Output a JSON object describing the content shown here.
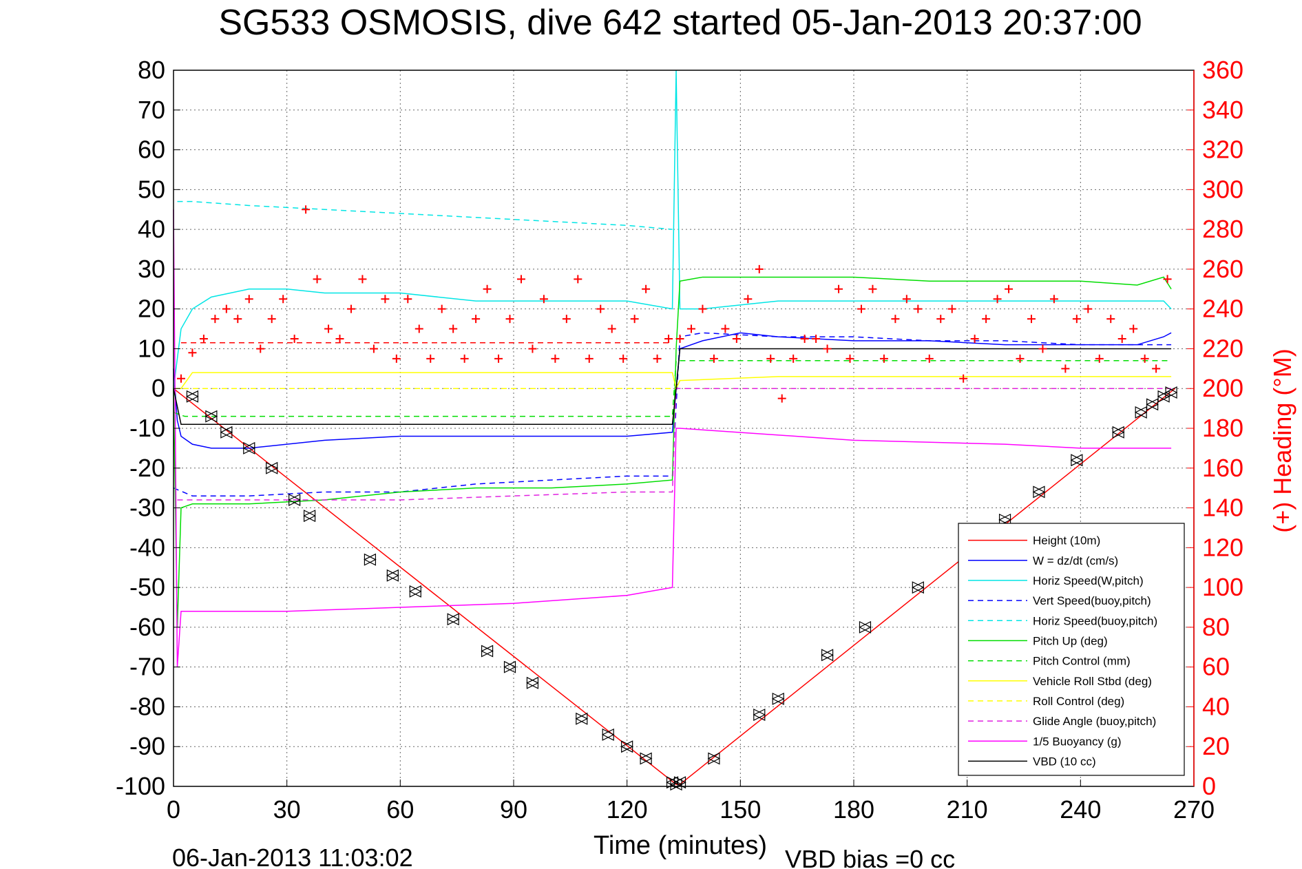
{
  "chart_data": {
    "type": "line",
    "title": "SG533 OSMOSIS, dive 642 started 05-Jan-2013 20:37:00",
    "xlabel": "Time (minutes)",
    "ylabel": "",
    "y2label": "(+) Heading (°M)",
    "footer_left": "06-Jan-2013 11:03:02",
    "footer_right": "VBD bias =0 cc",
    "xlim": [
      0,
      270
    ],
    "ylim": [
      -100,
      80
    ],
    "y2lim": [
      0,
      360
    ],
    "xticks": [
      "0",
      "30",
      "60",
      "90",
      "120",
      "150",
      "180",
      "210",
      "240",
      "270"
    ],
    "yticks": [
      "80",
      "70",
      "60",
      "50",
      "40",
      "30",
      "20",
      "10",
      "0",
      "-10",
      "-20",
      "-30",
      "-40",
      "-50",
      "-60",
      "-70",
      "-80",
      "-90",
      "-100"
    ],
    "y2ticks": [
      "360",
      "340",
      "320",
      "300",
      "280",
      "260",
      "240",
      "220",
      "200",
      "180",
      "160",
      "140",
      "120",
      "100",
      "80",
      "60",
      "40",
      "20",
      "0"
    ],
    "grid": true,
    "legend_position": "bottom-right",
    "series": [
      {
        "name": "Height (10m)",
        "color": "#ff0000",
        "style": "solid",
        "x": [
          0,
          133,
          134,
          265
        ],
        "y": [
          0,
          -99.5,
          -99.5,
          0
        ]
      },
      {
        "name": "W = dz/dt (cm/s)",
        "color": "#0000ff",
        "style": "solid",
        "x": [
          0,
          1,
          2,
          5,
          10,
          20,
          40,
          60,
          80,
          100,
          120,
          132,
          133,
          134,
          140,
          150,
          160,
          180,
          200,
          220,
          240,
          255,
          262,
          264
        ],
        "y": [
          5,
          -8,
          -12,
          -14,
          -15,
          -15,
          -13,
          -12,
          -12,
          -12,
          -12,
          -11,
          0,
          10,
          12,
          14,
          13,
          12,
          12,
          11,
          11,
          11,
          13,
          14
        ]
      },
      {
        "name": "Horiz Speed(W,pitch)",
        "color": "#00e5e5",
        "style": "solid",
        "x": [
          0,
          2,
          5,
          10,
          20,
          30,
          40,
          60,
          80,
          100,
          120,
          132,
          133,
          134,
          140,
          160,
          180,
          200,
          220,
          240,
          255,
          262,
          264
        ],
        "y": [
          0,
          15,
          20,
          23,
          25,
          25,
          24,
          24,
          22,
          22,
          22,
          20,
          80,
          20,
          20,
          22,
          22,
          22,
          22,
          22,
          22,
          22,
          20
        ]
      },
      {
        "name": "Vert Speed(buoy,pitch)",
        "color": "#0000ff",
        "style": "dashed",
        "x": [
          0,
          5,
          20,
          40,
          60,
          80,
          100,
          120,
          132,
          134,
          140,
          160,
          180,
          200,
          220,
          240,
          264
        ],
        "y": [
          -25,
          -27,
          -27,
          -26,
          -26,
          -24,
          -23,
          -22,
          -22,
          13,
          14,
          13,
          13,
          12,
          12,
          11,
          11
        ]
      },
      {
        "name": "Horiz Speed(buoy,pitch)",
        "color": "#00e5e5",
        "style": "dashed",
        "x": [
          1,
          5,
          20,
          40,
          60,
          80,
          100,
          120,
          132
        ],
        "y": [
          47,
          47,
          46,
          45,
          44,
          43,
          42,
          41,
          40
        ]
      },
      {
        "name": "Pitch Up (deg)",
        "color": "#00dd00",
        "style": "solid",
        "x": [
          0,
          1,
          2,
          5,
          20,
          40,
          60,
          80,
          100,
          120,
          132,
          133,
          134,
          140,
          160,
          180,
          200,
          220,
          240,
          255,
          262,
          264
        ],
        "y": [
          0,
          -60,
          -30,
          -29,
          -29,
          -28,
          -26,
          -25,
          -25,
          -24,
          -23,
          10,
          27,
          28,
          28,
          28,
          27,
          27,
          27,
          26,
          28,
          25
        ]
      },
      {
        "name": "Pitch Control (mm)",
        "color": "#00dd00",
        "style": "dashed",
        "x": [
          0,
          3,
          132,
          133,
          264
        ],
        "y": [
          -6,
          -7,
          -7,
          7,
          7
        ]
      },
      {
        "name": "Vehicle Roll Stbd (deg)",
        "color": "#ffff00",
        "style": "solid",
        "x": [
          0,
          2,
          5,
          30,
          60,
          90,
          120,
          132,
          133,
          134,
          160,
          200,
          240,
          264
        ],
        "y": [
          0,
          0,
          4,
          4,
          4,
          4,
          4,
          4,
          0,
          2,
          3,
          3,
          3,
          3
        ]
      },
      {
        "name": "Roll Control (deg)",
        "color": "#ffff00",
        "style": "dashed",
        "x": [
          0,
          264
        ],
        "y": [
          0,
          0
        ]
      },
      {
        "name": "Glide Angle (buoy,pitch)",
        "color": "#e020e0",
        "style": "dashed",
        "x": [
          1,
          5,
          30,
          60,
          90,
          120,
          132,
          133,
          264
        ],
        "y": [
          -28,
          -28,
          -28,
          -28,
          -27,
          -26,
          -26,
          0,
          0
        ]
      },
      {
        "name": "1/5 Buoyancy (g)",
        "color": "#ff00ff",
        "style": "solid",
        "x": [
          0,
          1,
          2,
          3,
          30,
          60,
          90,
          120,
          132,
          133,
          134,
          180,
          220,
          240,
          264
        ],
        "y": [
          45,
          -70,
          -56,
          -56,
          -56,
          -55,
          -54,
          -52,
          -50,
          -10,
          -10,
          -13,
          -14,
          -15,
          -15
        ]
      },
      {
        "name": "VBD (10 cc)",
        "color": "#000000",
        "style": "solid",
        "x": [
          0,
          2,
          132,
          133,
          134,
          264
        ],
        "y": [
          0,
          -9,
          -9,
          0,
          10,
          10
        ]
      }
    ],
    "heading_points": {
      "name": "(+) Heading (°M)",
      "color": "#ff0000",
      "x": [
        2,
        5,
        8,
        11,
        14,
        17,
        20,
        23,
        26,
        29,
        32,
        35,
        38,
        41,
        44,
        47,
        50,
        53,
        56,
        59,
        62,
        65,
        68,
        71,
        74,
        77,
        80,
        83,
        86,
        89,
        92,
        95,
        98,
        101,
        104,
        107,
        110,
        113,
        116,
        119,
        122,
        125,
        128,
        131,
        134,
        137,
        140,
        143,
        146,
        149,
        152,
        155,
        158,
        161,
        164,
        167,
        170,
        173,
        176,
        179,
        182,
        185,
        188,
        191,
        194,
        197,
        200,
        203,
        206,
        209,
        212,
        215,
        218,
        221,
        224,
        227,
        230,
        233,
        236,
        239,
        242,
        245,
        248,
        251,
        254,
        257,
        260,
        263
      ],
      "y": [
        205,
        218,
        225,
        235,
        240,
        235,
        245,
        220,
        235,
        245,
        225,
        290,
        255,
        230,
        225,
        240,
        255,
        220,
        245,
        215,
        245,
        230,
        215,
        240,
        230,
        215,
        235,
        250,
        215,
        235,
        255,
        220,
        245,
        215,
        235,
        255,
        215,
        240,
        230,
        215,
        235,
        250,
        215,
        225,
        225,
        230,
        240,
        215,
        230,
        225,
        245,
        260,
        215,
        195,
        215,
        225,
        225,
        220,
        250,
        215,
        240,
        250,
        215,
        235,
        245,
        240,
        215,
        235,
        240,
        205,
        225,
        235,
        245,
        250,
        215,
        235,
        220,
        245,
        210,
        235,
        240,
        215,
        235,
        225,
        230,
        215,
        210,
        255
      ]
    },
    "heading_target": {
      "color": "#ff0000",
      "style": "dashed",
      "value": 223
    },
    "gps_markers": {
      "color": "#000000",
      "x": [
        5,
        10,
        14,
        20,
        26,
        32,
        36,
        52,
        58,
        64,
        74,
        83,
        89,
        95,
        108,
        115,
        120,
        125,
        132,
        133,
        134,
        143,
        155,
        160,
        173,
        183,
        197,
        220,
        229,
        239,
        250,
        256,
        259,
        262,
        264
      ],
      "y": [
        -2,
        -7,
        -11,
        -15,
        -20,
        -28,
        -32,
        -43,
        -47,
        -51,
        -58,
        -66,
        -70,
        -74,
        -83,
        -87,
        -90,
        -93,
        -99,
        -99.5,
        -99,
        -93,
        -82,
        -78,
        -67,
        -60,
        -50,
        -33,
        -26,
        -18,
        -11,
        -6,
        -4,
        -2,
        -1
      ]
    }
  }
}
